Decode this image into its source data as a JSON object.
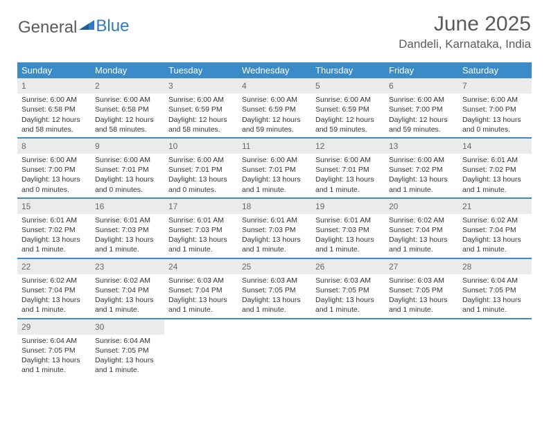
{
  "logo": {
    "text1": "General",
    "text2": "Blue"
  },
  "title": "June 2025",
  "location": "Dandeli, Karnataka, India",
  "colors": {
    "header_bg": "#3b8bc8",
    "header_text": "#ffffff",
    "daynum_bg": "#ebebeb",
    "daynum_text": "#666666",
    "rule": "#3b8bc8",
    "body_text": "#333333",
    "logo_gray": "#5a5a5a",
    "logo_blue": "#2f7bbf"
  },
  "weekdays": [
    "Sunday",
    "Monday",
    "Tuesday",
    "Wednesday",
    "Thursday",
    "Friday",
    "Saturday"
  ],
  "weeks": [
    [
      {
        "n": "1",
        "sr": "6:00 AM",
        "ss": "6:58 PM",
        "dl": "12 hours and 58 minutes."
      },
      {
        "n": "2",
        "sr": "6:00 AM",
        "ss": "6:58 PM",
        "dl": "12 hours and 58 minutes."
      },
      {
        "n": "3",
        "sr": "6:00 AM",
        "ss": "6:59 PM",
        "dl": "12 hours and 58 minutes."
      },
      {
        "n": "4",
        "sr": "6:00 AM",
        "ss": "6:59 PM",
        "dl": "12 hours and 59 minutes."
      },
      {
        "n": "5",
        "sr": "6:00 AM",
        "ss": "6:59 PM",
        "dl": "12 hours and 59 minutes."
      },
      {
        "n": "6",
        "sr": "6:00 AM",
        "ss": "7:00 PM",
        "dl": "12 hours and 59 minutes."
      },
      {
        "n": "7",
        "sr": "6:00 AM",
        "ss": "7:00 PM",
        "dl": "13 hours and 0 minutes."
      }
    ],
    [
      {
        "n": "8",
        "sr": "6:00 AM",
        "ss": "7:00 PM",
        "dl": "13 hours and 0 minutes."
      },
      {
        "n": "9",
        "sr": "6:00 AM",
        "ss": "7:01 PM",
        "dl": "13 hours and 0 minutes."
      },
      {
        "n": "10",
        "sr": "6:00 AM",
        "ss": "7:01 PM",
        "dl": "13 hours and 0 minutes."
      },
      {
        "n": "11",
        "sr": "6:00 AM",
        "ss": "7:01 PM",
        "dl": "13 hours and 1 minute."
      },
      {
        "n": "12",
        "sr": "6:00 AM",
        "ss": "7:01 PM",
        "dl": "13 hours and 1 minute."
      },
      {
        "n": "13",
        "sr": "6:00 AM",
        "ss": "7:02 PM",
        "dl": "13 hours and 1 minute."
      },
      {
        "n": "14",
        "sr": "6:01 AM",
        "ss": "7:02 PM",
        "dl": "13 hours and 1 minute."
      }
    ],
    [
      {
        "n": "15",
        "sr": "6:01 AM",
        "ss": "7:02 PM",
        "dl": "13 hours and 1 minute."
      },
      {
        "n": "16",
        "sr": "6:01 AM",
        "ss": "7:03 PM",
        "dl": "13 hours and 1 minute."
      },
      {
        "n": "17",
        "sr": "6:01 AM",
        "ss": "7:03 PM",
        "dl": "13 hours and 1 minute."
      },
      {
        "n": "18",
        "sr": "6:01 AM",
        "ss": "7:03 PM",
        "dl": "13 hours and 1 minute."
      },
      {
        "n": "19",
        "sr": "6:01 AM",
        "ss": "7:03 PM",
        "dl": "13 hours and 1 minute."
      },
      {
        "n": "20",
        "sr": "6:02 AM",
        "ss": "7:04 PM",
        "dl": "13 hours and 1 minute."
      },
      {
        "n": "21",
        "sr": "6:02 AM",
        "ss": "7:04 PM",
        "dl": "13 hours and 1 minute."
      }
    ],
    [
      {
        "n": "22",
        "sr": "6:02 AM",
        "ss": "7:04 PM",
        "dl": "13 hours and 1 minute."
      },
      {
        "n": "23",
        "sr": "6:02 AM",
        "ss": "7:04 PM",
        "dl": "13 hours and 1 minute."
      },
      {
        "n": "24",
        "sr": "6:03 AM",
        "ss": "7:04 PM",
        "dl": "13 hours and 1 minute."
      },
      {
        "n": "25",
        "sr": "6:03 AM",
        "ss": "7:05 PM",
        "dl": "13 hours and 1 minute."
      },
      {
        "n": "26",
        "sr": "6:03 AM",
        "ss": "7:05 PM",
        "dl": "13 hours and 1 minute."
      },
      {
        "n": "27",
        "sr": "6:03 AM",
        "ss": "7:05 PM",
        "dl": "13 hours and 1 minute."
      },
      {
        "n": "28",
        "sr": "6:04 AM",
        "ss": "7:05 PM",
        "dl": "13 hours and 1 minute."
      }
    ],
    [
      {
        "n": "29",
        "sr": "6:04 AM",
        "ss": "7:05 PM",
        "dl": "13 hours and 1 minute."
      },
      {
        "n": "30",
        "sr": "6:04 AM",
        "ss": "7:05 PM",
        "dl": "13 hours and 1 minute."
      },
      null,
      null,
      null,
      null,
      null
    ]
  ],
  "labels": {
    "sunrise": "Sunrise:",
    "sunset": "Sunset:",
    "daylight": "Daylight:"
  }
}
